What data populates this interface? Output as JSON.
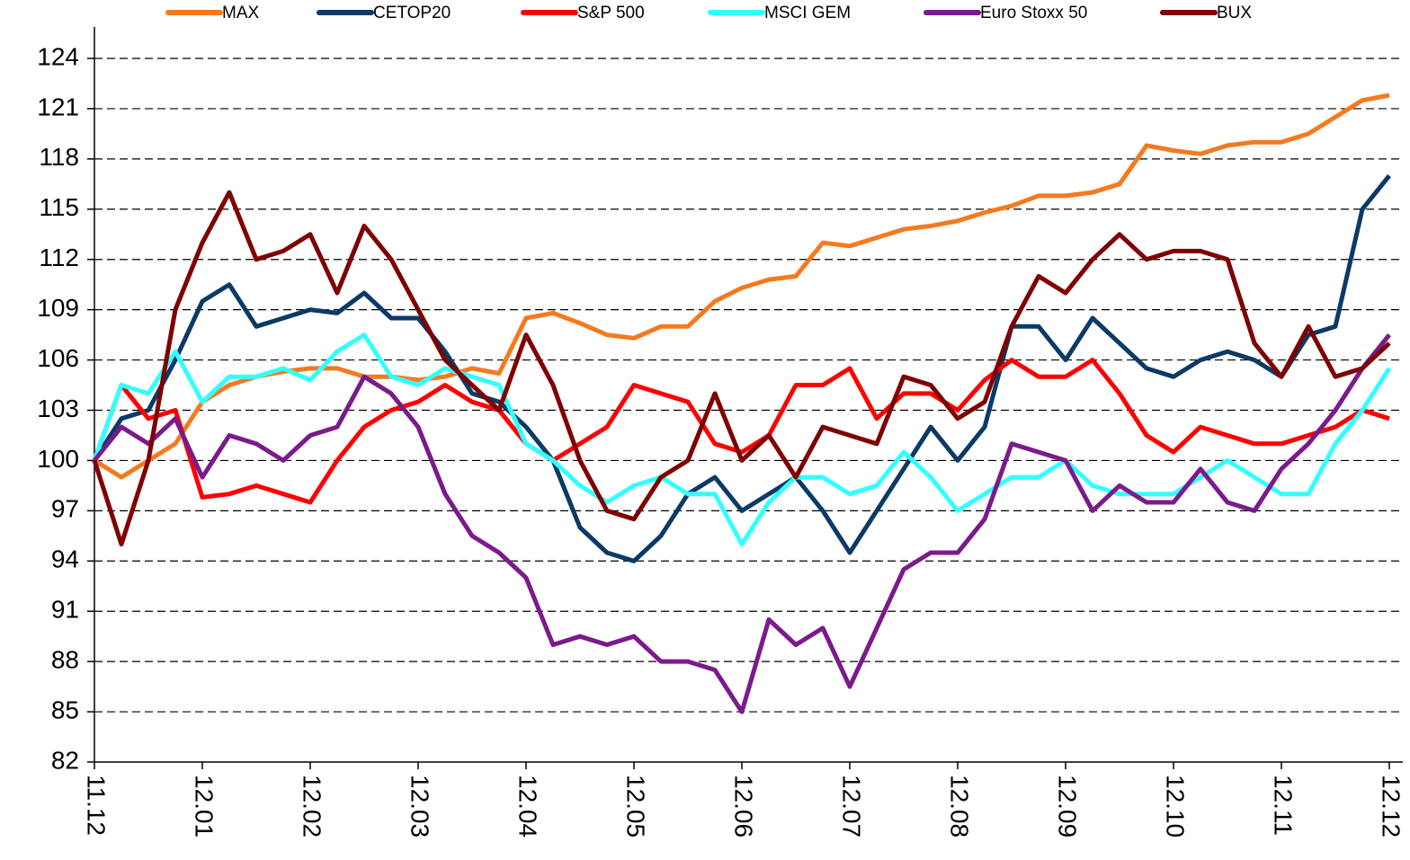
{
  "chart_data": {
    "type": "line",
    "categories": [
      "11.12",
      null,
      null,
      null,
      "12.01",
      null,
      null,
      null,
      "12.02",
      null,
      null,
      null,
      "12.03",
      null,
      null,
      null,
      "12.04",
      null,
      null,
      null,
      "12.05",
      null,
      null,
      null,
      "12.06",
      null,
      null,
      null,
      "12.07",
      null,
      null,
      null,
      "12.08",
      null,
      null,
      null,
      "12.09",
      null,
      null,
      null,
      "12.10",
      null,
      null,
      null,
      "12.11",
      null,
      null,
      null,
      "12.12"
    ],
    "series": [
      {
        "name": "MAX",
        "color": "#f47a20",
        "values": [
          100,
          99,
          100,
          101,
          103.5,
          104.5,
          105,
          105.3,
          105.5,
          105.5,
          105,
          105,
          104.8,
          105,
          105.5,
          105.2,
          108.5,
          108.8,
          108.2,
          107.5,
          107.3,
          108,
          108,
          109.5,
          110.3,
          110.8,
          111,
          113,
          112.8,
          113.3,
          113.8,
          114,
          114.3,
          114.8,
          115.2,
          115.8,
          115.8,
          116,
          116.5,
          118.8,
          118.5,
          118.3,
          118.8,
          119,
          119,
          119.5,
          120.5,
          121.5,
          121.8
        ]
      },
      {
        "name": "CETOP20",
        "color": "#0b3a66",
        "values": [
          100,
          102.5,
          103,
          106,
          109.5,
          110.5,
          108,
          108.5,
          109,
          108.8,
          110,
          108.5,
          108.5,
          106.5,
          104,
          103.5,
          102,
          100,
          96,
          94.5,
          94,
          95.5,
          98,
          99,
          97,
          98,
          99,
          97,
          94.5,
          97,
          99.5,
          102,
          100,
          102,
          108,
          108,
          106,
          108.5,
          107,
          105.5,
          105,
          106,
          106.5,
          106,
          105,
          107.5,
          108,
          115,
          117
        ]
      },
      {
        "name": "S&P 500",
        "color": "#ff0000",
        "values": [
          100,
          104.5,
          102.5,
          103,
          97.8,
          98,
          98.5,
          98,
          97.5,
          100,
          102,
          103,
          103.5,
          104.5,
          103.5,
          103,
          101,
          100,
          101,
          102,
          104.5,
          104,
          103.5,
          101,
          100.5,
          101.5,
          104.5,
          104.5,
          105.5,
          102.5,
          104,
          104,
          103,
          104.8,
          106,
          105,
          105,
          106,
          104,
          101.5,
          100.5,
          102,
          101.5,
          101,
          101,
          101.5,
          102,
          103,
          102.5
        ]
      },
      {
        "name": "MSCI GEM",
        "color": "#33ffff",
        "values": [
          100,
          104.5,
          104,
          106.5,
          103.5,
          105,
          105,
          105.5,
          104.8,
          106.5,
          107.5,
          105,
          104.5,
          105.5,
          105,
          104.5,
          101,
          100,
          98.5,
          97.5,
          98.5,
          99,
          98,
          98,
          95,
          97.5,
          99,
          99,
          98,
          98.5,
          100.5,
          99,
          97,
          98,
          99,
          99,
          100,
          98.5,
          98,
          98,
          98,
          99,
          100,
          99,
          98,
          98,
          101,
          103,
          105.5
        ]
      },
      {
        "name": "Euro Stoxx  50",
        "color": "#7b1a8c",
        "values": [
          100,
          102,
          101,
          102.5,
          99,
          101.5,
          101,
          100,
          101.5,
          102,
          105,
          104,
          102,
          98,
          95.5,
          94.5,
          93,
          89,
          89.5,
          89,
          89.5,
          88,
          88,
          87.5,
          85,
          90.5,
          89,
          90,
          86.5,
          90,
          93.5,
          94.5,
          94.5,
          96.5,
          101,
          100.5,
          100,
          97,
          98.5,
          97.5,
          97.5,
          99.5,
          97.5,
          97,
          99.5,
          101,
          103,
          105.5,
          107.5
        ]
      },
      {
        "name": "BUX",
        "color": "#7f0000",
        "values": [
          100,
          95,
          100,
          109,
          113,
          116,
          112,
          112.5,
          113.5,
          110,
          114,
          112,
          109,
          106,
          104.5,
          103,
          107.5,
          104.5,
          100,
          97,
          96.5,
          99,
          100,
          104,
          100,
          101.5,
          99,
          102,
          101.5,
          101,
          105,
          104.5,
          102.5,
          103.5,
          108,
          111,
          110,
          112,
          113.5,
          112,
          112.5,
          112.5,
          112,
          107,
          105,
          108,
          105,
          105.5,
          107
        ]
      }
    ],
    "ylim": [
      82,
      124
    ],
    "yticks": [
      82,
      85,
      88,
      91,
      94,
      97,
      100,
      103,
      106,
      109,
      112,
      115,
      118,
      121,
      124
    ],
    "grid": true,
    "legend": "top"
  }
}
